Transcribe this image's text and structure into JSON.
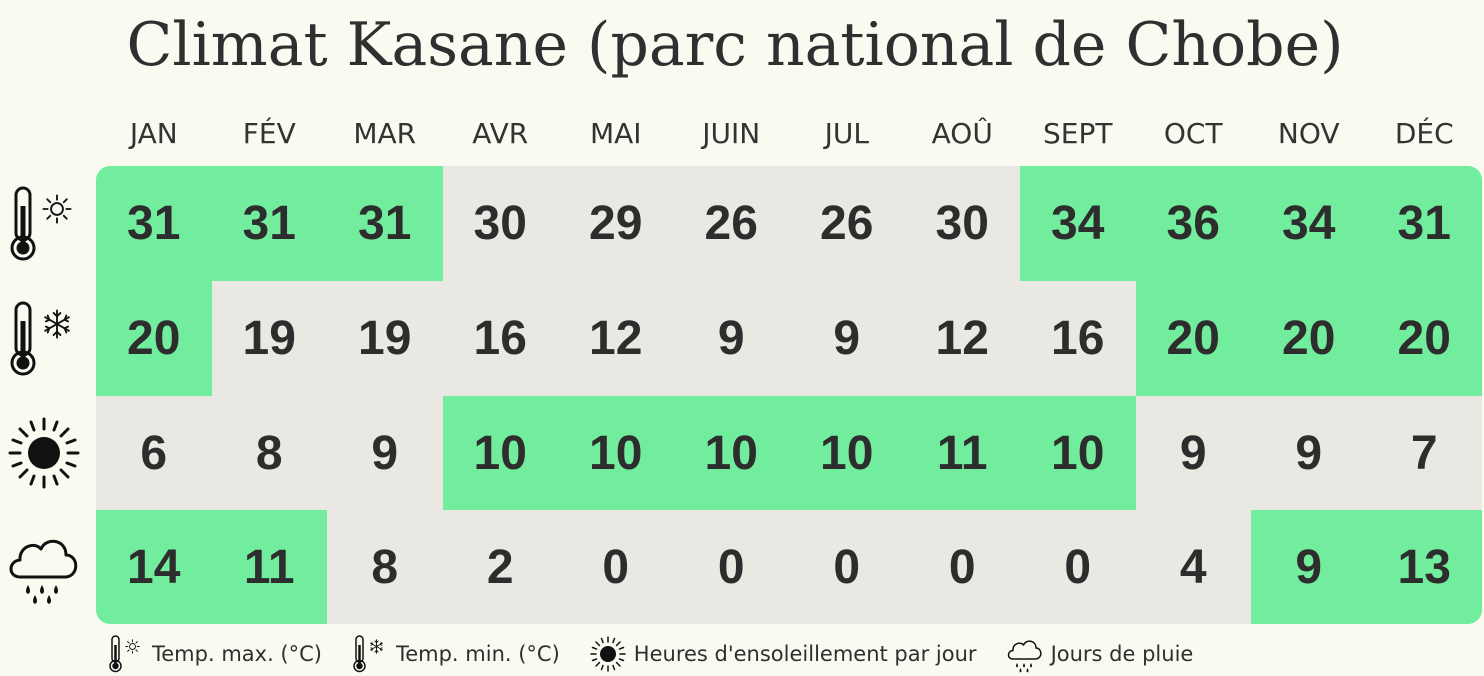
{
  "chart_data": {
    "type": "table",
    "title": "Climat Kasane (parc national de Chobe)",
    "columns": [
      "JAN",
      "FÉV",
      "MAR",
      "AVR",
      "MAI",
      "JUIN",
      "JUL",
      "AOÛ",
      "SEPT",
      "OCT",
      "NOV",
      "DÉC"
    ],
    "rows": [
      {
        "icon": "thermometer-sun-icon",
        "values": [
          31,
          31,
          31,
          30,
          29,
          26,
          26,
          30,
          34,
          36,
          34,
          31
        ],
        "highlighted": [
          true,
          true,
          true,
          false,
          false,
          false,
          false,
          false,
          true,
          true,
          true,
          true
        ]
      },
      {
        "icon": "thermometer-snowflake-icon",
        "values": [
          20,
          19,
          19,
          16,
          12,
          9,
          9,
          12,
          16,
          20,
          20,
          20
        ],
        "highlighted": [
          true,
          false,
          false,
          false,
          false,
          false,
          false,
          false,
          false,
          true,
          true,
          true
        ]
      },
      {
        "icon": "sun-icon",
        "values": [
          6,
          8,
          9,
          10,
          10,
          10,
          10,
          11,
          10,
          9,
          9,
          7
        ],
        "highlighted": [
          false,
          false,
          false,
          true,
          true,
          true,
          true,
          true,
          true,
          false,
          false,
          false
        ]
      },
      {
        "icon": "rain-cloud-icon",
        "values": [
          14,
          11,
          8,
          2,
          0,
          0,
          0,
          0,
          0,
          4,
          9,
          13
        ],
        "highlighted": [
          true,
          true,
          false,
          false,
          false,
          false,
          false,
          false,
          false,
          false,
          true,
          true
        ]
      }
    ],
    "legend": [
      {
        "icon": "thermometer-sun-icon",
        "label": "Temp. max. (°C)"
      },
      {
        "icon": "thermometer-snowflake-icon",
        "label": "Temp. min. (°C)"
      },
      {
        "icon": "sun-icon",
        "label": "Heures d'ensoleillement par jour"
      },
      {
        "icon": "rain-cloud-icon",
        "label": "Jours de pluie"
      }
    ],
    "colors": {
      "highlight": "#72ed9e",
      "base": "#e9e8e2",
      "background": "#fbfaf1",
      "text": "#2d2d2d"
    }
  }
}
